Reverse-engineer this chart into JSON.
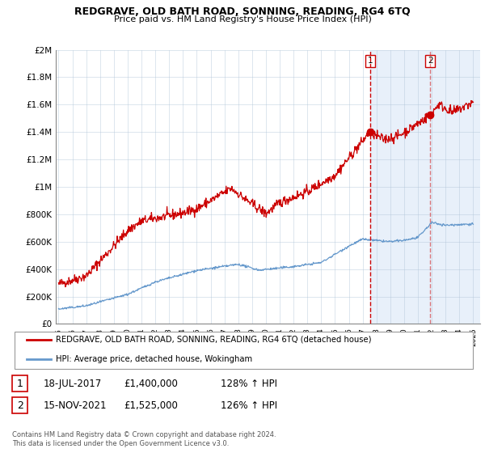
{
  "title": "REDGRAVE, OLD BATH ROAD, SONNING, READING, RG4 6TQ",
  "subtitle": "Price paid vs. HM Land Registry's House Price Index (HPI)",
  "legend_label_red": "REDGRAVE, OLD BATH ROAD, SONNING, READING, RG4 6TQ (detached house)",
  "legend_label_blue": "HPI: Average price, detached house, Wokingham",
  "annotation1_label": "1",
  "annotation1_date": "18-JUL-2017",
  "annotation1_price": "£1,400,000",
  "annotation1_hpi": "128% ↑ HPI",
  "annotation2_label": "2",
  "annotation2_date": "15-NOV-2021",
  "annotation2_price": "£1,525,000",
  "annotation2_hpi": "126% ↑ HPI",
  "footer": "Contains HM Land Registry data © Crown copyright and database right 2024.\nThis data is licensed under the Open Government Licence v3.0.",
  "red_color": "#cc0000",
  "blue_color": "#6699cc",
  "background_plot_shade": "#e8f0fa",
  "grid_color": "#b0c4d8",
  "vline_color": "#cc0000",
  "ylim": [
    0,
    2000000
  ],
  "yticks": [
    0,
    200000,
    400000,
    600000,
    800000,
    1000000,
    1200000,
    1400000,
    1600000,
    1800000,
    2000000
  ],
  "ytick_labels": [
    "£0",
    "£200K",
    "£400K",
    "£600K",
    "£800K",
    "£1M",
    "£1.2M",
    "£1.4M",
    "£1.6M",
    "£1.8M",
    "£2M"
  ],
  "marker1_x": 2017.54,
  "marker1_y": 1400000,
  "marker2_x": 2021.88,
  "marker2_y": 1525000,
  "vline1_x": 2017.54,
  "vline2_x": 2021.88,
  "shade_start": 2017.54,
  "shade_end": 2025.5,
  "xlim_start": 1994.8,
  "xlim_end": 2025.5
}
